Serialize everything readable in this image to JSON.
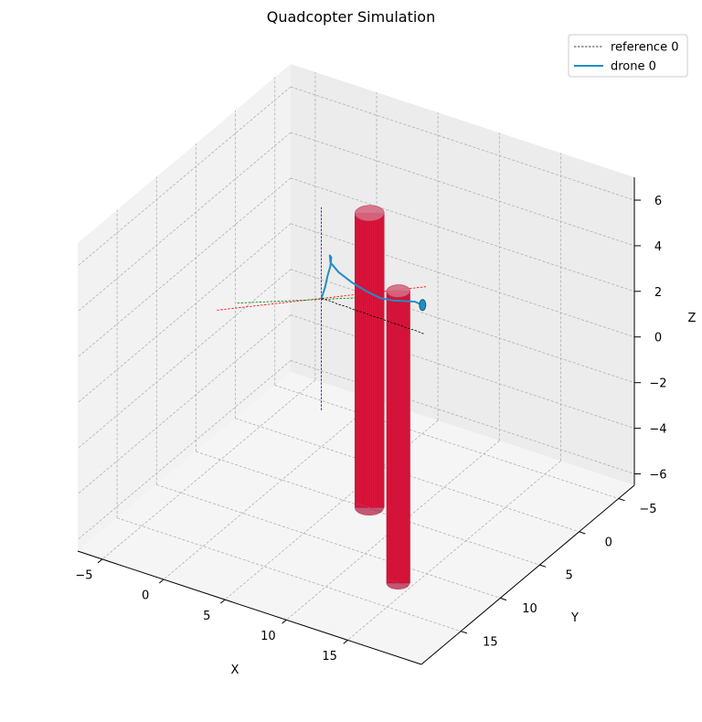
{
  "chart_data": {
    "type": "line",
    "projection": "3d",
    "title": "Quadcopter Simulation",
    "xlabel": "X",
    "ylabel": "Y",
    "zlabel": "Z",
    "xlim": [
      -7,
      21
    ],
    "ylim": [
      -7,
      20
    ],
    "zlim": [
      -6.5,
      7
    ],
    "xticks": [
      "−5",
      "0",
      "5",
      "10",
      "15"
    ],
    "xtick_values": [
      -5,
      0,
      5,
      10,
      15
    ],
    "yticks": [
      "−5",
      "0",
      "5",
      "10",
      "15"
    ],
    "ytick_values": [
      -5,
      0,
      5,
      10,
      15
    ],
    "zticks": [
      "−6",
      "−4",
      "−2",
      "0",
      "2",
      "4",
      "6"
    ],
    "ztick_values": [
      -6,
      -4,
      -2,
      0,
      2,
      4,
      6
    ],
    "grid": true,
    "legend_position": "top-right",
    "legend": [
      {
        "label": "reference 0",
        "style": "dashed",
        "color": "#000000"
      },
      {
        "label": "drone 0",
        "style": "solid",
        "color": "#1f8fc4"
      }
    ],
    "series": [
      {
        "name": "reference 0",
        "x": [
          0,
          1.5,
          3.0,
          4.5,
          6.0,
          7.5,
          9.0,
          10.5,
          12.0,
          13.5,
          15.0,
          16.5,
          18.0
        ],
        "y": [
          0,
          1.2,
          2.5,
          3.7,
          5.0,
          6.2,
          7.5,
          8.7,
          10.0,
          11.2,
          12.5,
          13.7,
          15.0
        ],
        "z": [
          0,
          0.5,
          1.0,
          1.5,
          2.0,
          2.5,
          3.0,
          3.5,
          4.0,
          4.5,
          5.0,
          5.5,
          6.0
        ]
      },
      {
        "name": "drone 0",
        "x": [
          0,
          1.2,
          2.3,
          3.5,
          4.4,
          4.8,
          5.5,
          6.8,
          8.5,
          10.2,
          12.0,
          13.5,
          15.0,
          16.5,
          17.5
        ],
        "y": [
          0,
          1.4,
          2.8,
          4.3,
          5.6,
          6.4,
          7.4,
          8.4,
          9.3,
          10.2,
          11.2,
          12.0,
          12.9,
          13.8,
          14.4
        ],
        "z": [
          0,
          1.1,
          2.2,
          3.3,
          4.2,
          4.6,
          4.7,
          4.8,
          4.9,
          5.1,
          5.4,
          5.8,
          6.3,
          6.8,
          7.0
        ]
      }
    ],
    "obstacles": [
      {
        "shape": "cylinder",
        "color": "#dc143c",
        "center_x": 7.2,
        "center_y": 5.1,
        "radius": 1.0,
        "z_min": -6.4,
        "z_max": 6.5
      },
      {
        "shape": "cylinder",
        "color": "#dc143c",
        "center_x": 14.3,
        "center_y": 12.5,
        "radius": 0.8,
        "z_min": -6.3,
        "z_max": 6.5
      }
    ],
    "start_frame": {
      "x": 0,
      "y": 0,
      "z": 0,
      "x_axis_color": "#ff0000",
      "y_axis_color": "#008000",
      "z_axis_color": "#0000ff"
    },
    "end_marker": {
      "x": 17.5,
      "y": 14.4,
      "z": 7.0,
      "color": "#1f8fc4"
    },
    "colors": {
      "reference": "#000000",
      "drone": "#1f8fc4",
      "obstacle": "#dc143c",
      "pane_left": "#f2f2f2",
      "pane_right": "#ececec",
      "pane_floor": "#f5f5f5"
    }
  }
}
